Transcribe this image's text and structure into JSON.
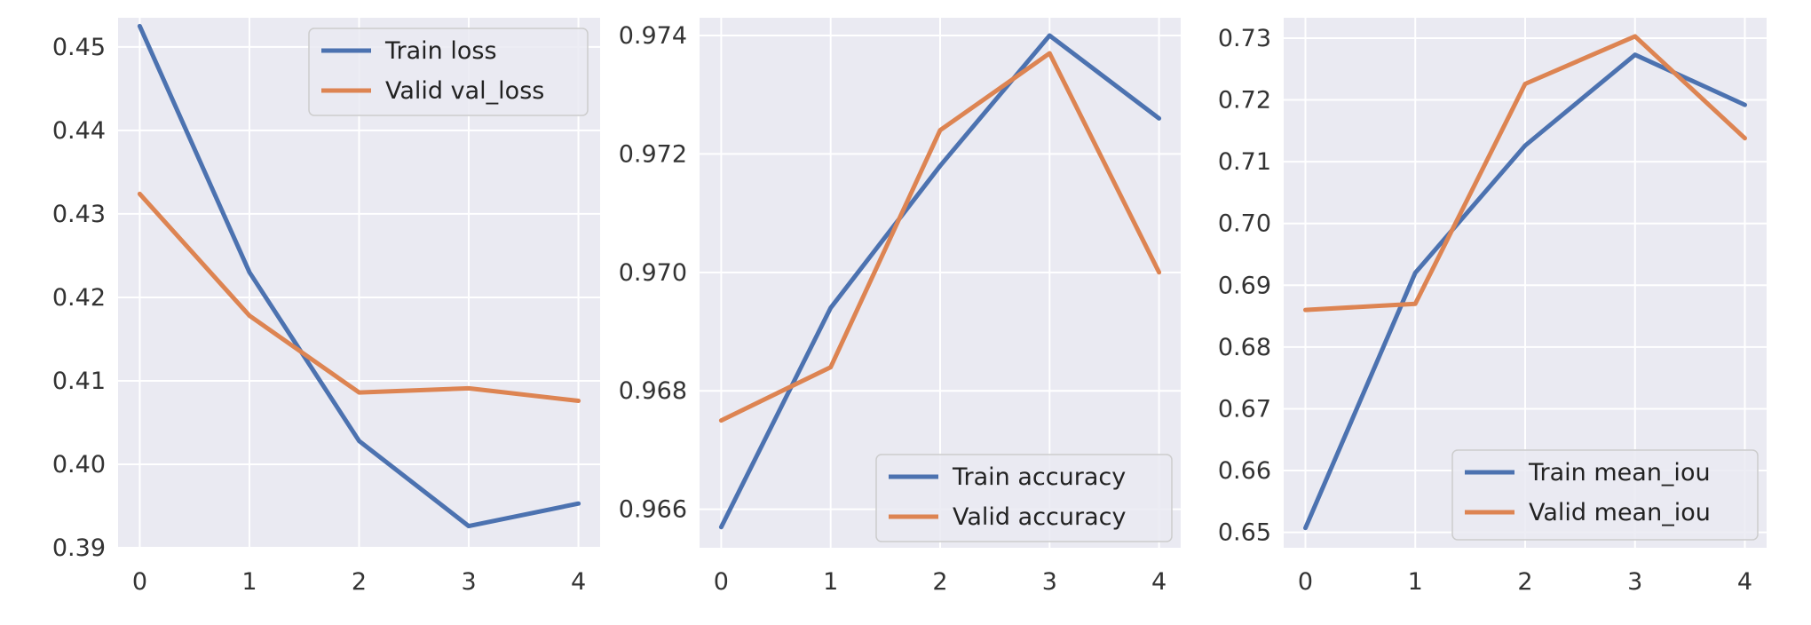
{
  "chart_data": [
    {
      "type": "line",
      "x": [
        0,
        1,
        2,
        3,
        4
      ],
      "ylim": [
        0.39,
        0.4535
      ],
      "yticks": [
        0.39,
        0.4,
        0.41,
        0.42,
        0.43,
        0.44,
        0.45
      ],
      "ytick_labels": [
        "0.39",
        "0.40",
        "0.41",
        "0.42",
        "0.43",
        "0.44",
        "0.45"
      ],
      "xticks": [
        "0",
        "1",
        "2",
        "3",
        "4"
      ],
      "grid": true,
      "legend_position": "top-right",
      "series": [
        {
          "name": "Train loss",
          "color": "#4C72B0",
          "values": [
            0.4525,
            0.423,
            0.4028,
            0.3926,
            0.3953
          ]
        },
        {
          "name": "Valid val_loss",
          "color": "#DD8452",
          "values": [
            0.4324,
            0.4178,
            0.4086,
            0.4091,
            0.4076
          ]
        }
      ]
    },
    {
      "type": "line",
      "x": [
        0,
        1,
        2,
        3,
        4
      ],
      "ylim": [
        0.96535,
        0.9743
      ],
      "yticks": [
        0.966,
        0.968,
        0.97,
        0.972,
        0.974
      ],
      "ytick_labels": [
        "0.966",
        "0.968",
        "0.970",
        "0.972",
        "0.974"
      ],
      "xticks": [
        "0",
        "1",
        "2",
        "3",
        "4"
      ],
      "grid": true,
      "legend_position": "bottom-right",
      "series": [
        {
          "name": "Train accuracy",
          "color": "#4C72B0",
          "values": [
            0.9657,
            0.9694,
            0.9718,
            0.974,
            0.9726
          ]
        },
        {
          "name": "Valid accuracy",
          "color": "#DD8452",
          "values": [
            0.9675,
            0.9684,
            0.9724,
            0.9737,
            0.97
          ]
        }
      ]
    },
    {
      "type": "line",
      "x": [
        0,
        1,
        2,
        3,
        4
      ],
      "ylim": [
        0.6475,
        0.7333
      ],
      "yticks": [
        0.65,
        0.66,
        0.67,
        0.68,
        0.69,
        0.7,
        0.71,
        0.72,
        0.73
      ],
      "ytick_labels": [
        "0.65",
        "0.66",
        "0.67",
        "0.68",
        "0.69",
        "0.70",
        "0.71",
        "0.72",
        "0.73"
      ],
      "xticks": [
        "0",
        "1",
        "2",
        "3",
        "4"
      ],
      "grid": true,
      "legend_position": "bottom-right",
      "series": [
        {
          "name": "Train mean_iou",
          "color": "#4C72B0",
          "values": [
            0.6507,
            0.692,
            0.7126,
            0.7273,
            0.7192
          ]
        },
        {
          "name": "Valid mean_iou",
          "color": "#DD8452",
          "values": [
            0.686,
            0.687,
            0.7226,
            0.7303,
            0.7138
          ]
        }
      ]
    }
  ]
}
